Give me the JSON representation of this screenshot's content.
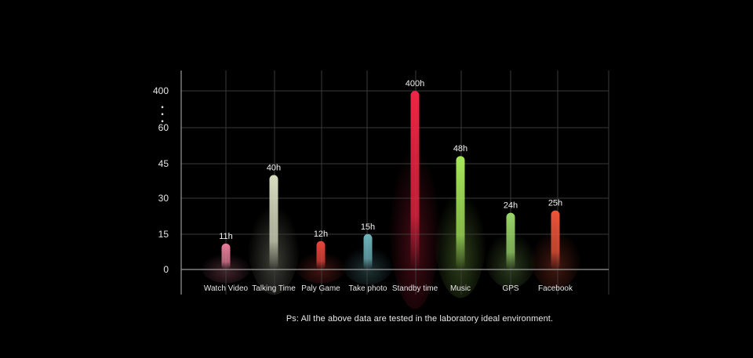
{
  "chart_data": {
    "type": "bar",
    "categories": [
      "Watch Video",
      "Talking Time",
      "Paly Game",
      "Take photo",
      "Standby time",
      "Music",
      "GPS",
      "Facebook"
    ],
    "values": [
      11,
      40,
      12,
      15,
      400,
      48,
      24,
      25
    ],
    "data_labels": [
      "11h",
      "40h",
      "12h",
      "15h",
      "400h",
      "48h",
      "24h",
      "25h"
    ],
    "y_ticks": [
      "0",
      "15",
      "30",
      "45",
      "60",
      "400"
    ],
    "y_tick_values": [
      0,
      15,
      30,
      45,
      60,
      400
    ],
    "axis_break": "• • •",
    "grid": true,
    "bar_colors": [
      "#e87f9a",
      "#d8dcc0",
      "#e8453c",
      "#6fb5bd",
      "#ee2645",
      "#a6e85a",
      "#9ad66a",
      "#f0553a"
    ]
  },
  "footnote": "Ps: All the above data are tested in the laboratory ideal environment."
}
